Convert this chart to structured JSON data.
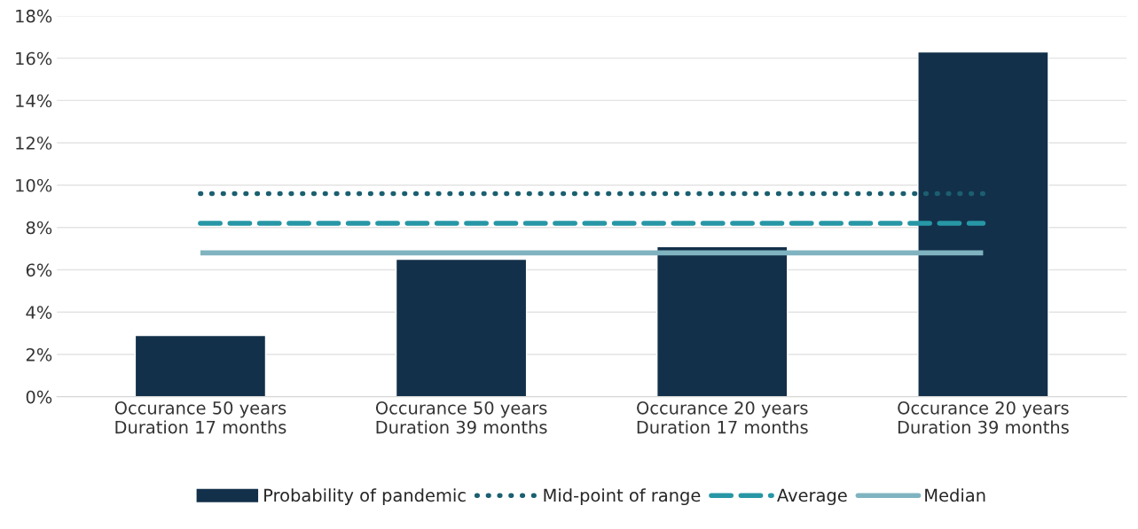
{
  "chart_data": {
    "type": "bar",
    "categories": [
      "Occurance 50 years\nDuration 17 months",
      "Occurance 50 years\nDuration 39 months",
      "Occurance 20 years\nDuration 17 months",
      "Occurance 20 years\nDuration 39 months"
    ],
    "series": [
      {
        "name": "Probability of pandemic",
        "color": "#13304a",
        "values": [
          2.9,
          6.5,
          7.1,
          16.3
        ]
      },
      {
        "name": "Mid-point of range",
        "type": "line",
        "line_style": "dotted",
        "color": "#1b5f70",
        "values": [
          9.6,
          9.6,
          9.6,
          9.6
        ]
      },
      {
        "name": "Average",
        "type": "line",
        "line_style": "dashed",
        "color": "#2797a6",
        "values": [
          8.2,
          8.2,
          8.2,
          8.2
        ]
      },
      {
        "name": "Median",
        "type": "line",
        "line_style": "solid",
        "color": "#80b3c0",
        "values": [
          6.8,
          6.8,
          6.8,
          6.8
        ]
      }
    ],
    "ylim": [
      0,
      18
    ],
    "yticks": [
      {
        "value": 0,
        "label": "0%"
      },
      {
        "value": 2,
        "label": "2%"
      },
      {
        "value": 4,
        "label": "4%"
      },
      {
        "value": 6,
        "label": "6%"
      },
      {
        "value": 8,
        "label": "8%"
      },
      {
        "value": 10,
        "label": "10%"
      },
      {
        "value": 12,
        "label": "12%"
      },
      {
        "value": 14,
        "label": "14%"
      },
      {
        "value": 16,
        "label": "16%"
      },
      {
        "value": 18,
        "label": "18%"
      }
    ],
    "grid": "y",
    "legend": "bottom"
  }
}
